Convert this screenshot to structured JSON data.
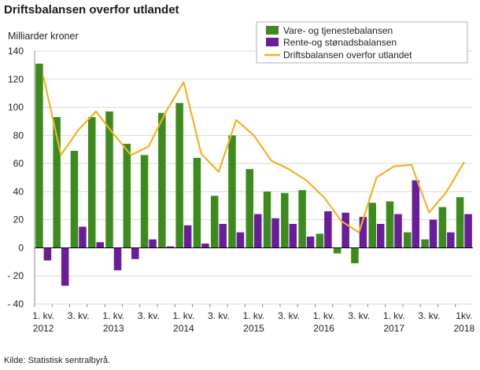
{
  "title": "Driftsbalansen overfor utlandet",
  "source": "Kilde: Statistisk sentralbyrå.",
  "chart_data": {
    "type": "bar",
    "ylabel": "Milliarder  kroner",
    "ylim": [
      -40,
      140
    ],
    "yticks": [
      -40,
      -20,
      0,
      20,
      40,
      60,
      80,
      100,
      120,
      140
    ],
    "ytick_labels": [
      "- 40",
      "- 20",
      "0",
      "20",
      "40",
      "60",
      "80",
      "100",
      "120",
      "140"
    ],
    "grid": true,
    "legend_position": "top-right",
    "categories": [
      "2012K1",
      "2012K2",
      "2012K3",
      "2012K4",
      "2013K1",
      "2013K2",
      "2013K3",
      "2013K4",
      "2014K1",
      "2014K2",
      "2014K3",
      "2014K4",
      "2015K1",
      "2015K2",
      "2015K3",
      "2015K4",
      "2016K1",
      "2016K2",
      "2016K3",
      "2016K4",
      "2017K1",
      "2017K2",
      "2017K3",
      "2017K4",
      "2018K1"
    ],
    "x_tick_labels": [
      {
        "index": 0,
        "line1": "1. kv.",
        "line2": "2012"
      },
      {
        "index": 2,
        "line1": "3. kv.",
        "line2": ""
      },
      {
        "index": 4,
        "line1": "1. kv.",
        "line2": "2013"
      },
      {
        "index": 6,
        "line1": "3. kv.",
        "line2": ""
      },
      {
        "index": 8,
        "line1": "1. kv.",
        "line2": "2014"
      },
      {
        "index": 10,
        "line1": "3. kv.",
        "line2": ""
      },
      {
        "index": 12,
        "line1": "1. kv.",
        "line2": "2015"
      },
      {
        "index": 14,
        "line1": "3. kv.",
        "line2": ""
      },
      {
        "index": 16,
        "line1": "1. kv.",
        "line2": "2016"
      },
      {
        "index": 18,
        "line1": "3. kv.",
        "line2": ""
      },
      {
        "index": 20,
        "line1": "1. kv.",
        "line2": "2017"
      },
      {
        "index": 22,
        "line1": "3. kv.",
        "line2": ""
      },
      {
        "index": 24,
        "line1": "1kv.",
        "line2": "2018"
      }
    ],
    "series": [
      {
        "name": "Vare- og tjenestebalansen",
        "type": "bar",
        "color": "#3d8b1c",
        "values": [
          131,
          93,
          69,
          93,
          97,
          74,
          66,
          96,
          103,
          64,
          37,
          80,
          56,
          40,
          39,
          41,
          10,
          -4,
          -11,
          32,
          33,
          11,
          6,
          29,
          36
        ]
      },
      {
        "name": "Rente-og stønadsbalansen",
        "type": "bar",
        "color": "#6a1c9a",
        "values": [
          -9,
          -27,
          15,
          4,
          -16,
          -8,
          6,
          1,
          16,
          3,
          17,
          11,
          24,
          21,
          17,
          8,
          26,
          25,
          22,
          17,
          24,
          48,
          20,
          11,
          24
        ]
      },
      {
        "name": "Driftsbalansen overfor utlandet",
        "type": "line",
        "color": "#f0b323",
        "values": [
          122,
          66,
          84,
          97,
          81,
          66,
          72,
          97,
          118,
          67,
          54,
          91,
          80,
          62,
          56,
          48,
          36,
          19,
          11,
          50,
          58,
          59,
          25,
          40,
          61
        ]
      }
    ]
  }
}
